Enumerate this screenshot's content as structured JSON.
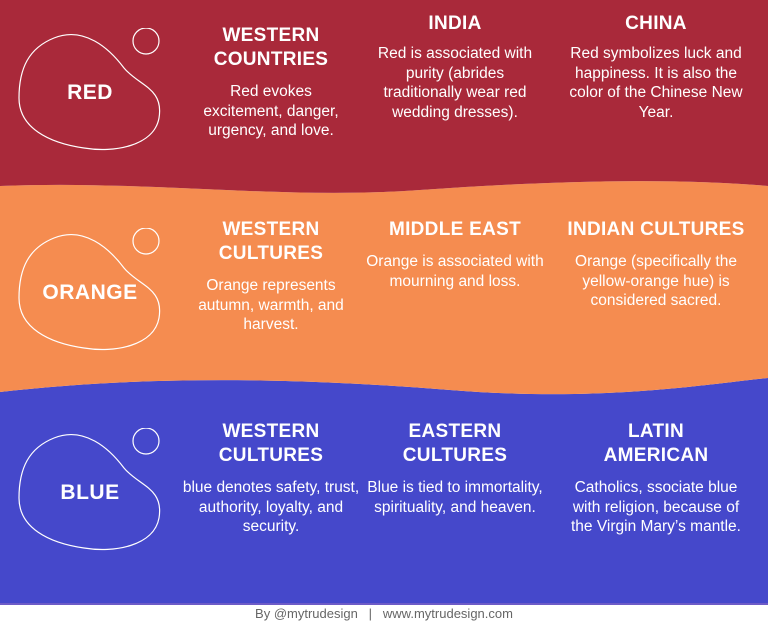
{
  "colors": {
    "red": "#a9293a",
    "orange": "#f58c50",
    "blue": "#4548cb"
  },
  "sections": [
    {
      "name": "RED",
      "columns": [
        {
          "title": "WESTERN COUNTRIES",
          "text": "Red evokes excitement, danger, urgency, and love."
        },
        {
          "title": "INDIA",
          "text": "Red is associated with purity (abrides traditionally wear red wedding dresses)."
        },
        {
          "title": "CHINA",
          "text": "Red symbolizes luck and happiness. It is also the color of the Chinese New Year."
        }
      ]
    },
    {
      "name": "ORANGE",
      "columns": [
        {
          "title": "WESTERN CULTURES",
          "text": "Orange represents autumn, warmth, and harvest."
        },
        {
          "title": "MIDDLE EAST",
          "text": "Orange is associated with mourning and loss."
        },
        {
          "title": "INDIAN CULTURES",
          "text": "Orange (specifically the yellow-orange hue) is considered sacred."
        }
      ]
    },
    {
      "name": "BLUE",
      "columns": [
        {
          "title": "WESTERN CULTURES",
          "text": "blue denotes safety, trust, authority, loyalty, and security."
        },
        {
          "title": "EASTERN CULTURES",
          "text": "Blue is tied to immortality, spirituality, and heaven."
        },
        {
          "title": "LATIN AMERICAN",
          "text": "Catholics, ssociate blue with religion, because of the Virgin Mary’s mantle."
        }
      ]
    }
  ],
  "footer": {
    "author": "By @mytrudesign",
    "separator": "|",
    "website": "www.mytrudesign.com"
  }
}
